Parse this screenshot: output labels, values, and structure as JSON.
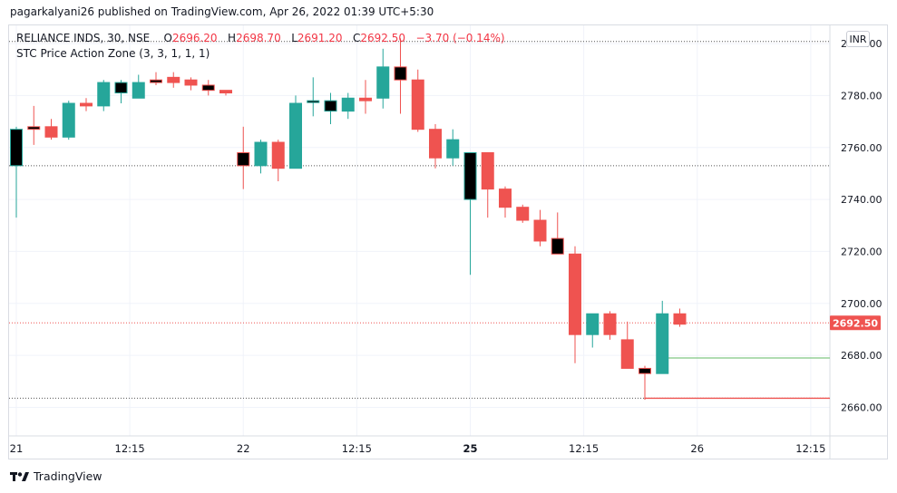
{
  "publisher_line": "pagarkalyani26 published on TradingView.com, Apr 26, 2022 01:39 UTC+5:30",
  "legend": {
    "symbol": "RELIANCE INDS, 30, NSE",
    "o_label": "O",
    "o_value": "2696.20",
    "h_label": "H",
    "h_value": "2698.70",
    "l_label": "L",
    "l_value": "2691.20",
    "c_label": "C",
    "c_value": "2692.50",
    "change": "−3.70 (−0.14%)",
    "indicator": "STC Price Action Zone (3, 3, 1, 1, 1)"
  },
  "currency_button": "INR",
  "brand": "TradingView",
  "colors": {
    "up": "#26a69a",
    "down": "#ef5350",
    "grid": "#f0f3fa",
    "price_tag": "#ef5350",
    "support": "#81c784",
    "resistance": "#ef5350",
    "dotted": "#555555"
  },
  "chart_data": {
    "type": "candlestick",
    "ylim": [
      2649,
      2807
    ],
    "y_ticks": [
      2660,
      2680,
      2700,
      2720,
      2740,
      2760,
      2780,
      2800
    ],
    "y_tick_labels": [
      "2660.00",
      "2680.00",
      "2700.00",
      "2720.00",
      "2740.00",
      "2760.00",
      "2780.00",
      "2800.00"
    ],
    "x_tick_labels": [
      {
        "label": "21",
        "bold": false,
        "index": 0
      },
      {
        "label": "12:15",
        "bold": false,
        "index": 6.5
      },
      {
        "label": "22",
        "bold": false,
        "index": 13
      },
      {
        "label": "12:15",
        "bold": false,
        "index": 19.5
      },
      {
        "label": "25",
        "bold": true,
        "index": 26
      },
      {
        "label": "12:15",
        "bold": false,
        "index": 32.5
      },
      {
        "label": "26",
        "bold": false,
        "index": 39
      },
      {
        "label": "12:15",
        "bold": false,
        "index": 45.5
      }
    ],
    "candles": [
      {
        "o": 2753,
        "h": 2768,
        "l": 2733,
        "c": 2767,
        "s": "zone"
      },
      {
        "o": 2768,
        "h": 2776,
        "l": 2761,
        "c": 2767,
        "s": "zone"
      },
      {
        "o": 2768,
        "h": 2771,
        "l": 2763,
        "c": 2764,
        "s": "down"
      },
      {
        "o": 2764,
        "h": 2778,
        "l": 2763,
        "c": 2777,
        "s": "up"
      },
      {
        "o": 2777,
        "h": 2779,
        "l": 2774,
        "c": 2776,
        "s": "down"
      },
      {
        "o": 2776,
        "h": 2786,
        "l": 2774,
        "c": 2785,
        "s": "up"
      },
      {
        "o": 2781,
        "h": 2786,
        "l": 2777,
        "c": 2785,
        "s": "zone"
      },
      {
        "o": 2779,
        "h": 2788,
        "l": 2779,
        "c": 2785,
        "s": "up"
      },
      {
        "o": 2786,
        "h": 2789,
        "l": 2784,
        "c": 2785,
        "s": "zone"
      },
      {
        "o": 2787,
        "h": 2789,
        "l": 2783,
        "c": 2785,
        "s": "down"
      },
      {
        "o": 2786,
        "h": 2787,
        "l": 2782,
        "c": 2784,
        "s": "down"
      },
      {
        "o": 2784,
        "h": 2786,
        "l": 2780,
        "c": 2782,
        "s": "zone"
      },
      {
        "o": 2782,
        "h": 2782,
        "l": 2780,
        "c": 2781,
        "s": "down"
      },
      {
        "o": 2758,
        "h": 2768,
        "l": 2744,
        "c": 2753,
        "s": "zone"
      },
      {
        "o": 2753,
        "h": 2763,
        "l": 2750,
        "c": 2762,
        "s": "up"
      },
      {
        "o": 2762,
        "h": 2763,
        "l": 2747,
        "c": 2752,
        "s": "down"
      },
      {
        "o": 2752,
        "h": 2780,
        "l": 2752,
        "c": 2777,
        "s": "up"
      },
      {
        "o": 2778,
        "h": 2787,
        "l": 2772,
        "c": 2778,
        "s": "zone"
      },
      {
        "o": 2774,
        "h": 2781,
        "l": 2769,
        "c": 2778,
        "s": "zone"
      },
      {
        "o": 2774,
        "h": 2781,
        "l": 2771,
        "c": 2779,
        "s": "up"
      },
      {
        "o": 2779,
        "h": 2786,
        "l": 2773,
        "c": 2778,
        "s": "down"
      },
      {
        "o": 2779,
        "h": 2798,
        "l": 2775,
        "c": 2791,
        "s": "up"
      },
      {
        "o": 2791,
        "h": 2802,
        "l": 2773,
        "c": 2786,
        "s": "zone"
      },
      {
        "o": 2786,
        "h": 2790,
        "l": 2766,
        "c": 2767,
        "s": "down"
      },
      {
        "o": 2767,
        "h": 2769,
        "l": 2752,
        "c": 2756,
        "s": "down"
      },
      {
        "o": 2756,
        "h": 2767,
        "l": 2753,
        "c": 2763,
        "s": "up"
      },
      {
        "o": 2740,
        "h": 2758,
        "l": 2711,
        "c": 2758,
        "s": "zone"
      },
      {
        "o": 2758,
        "h": 2758,
        "l": 2733,
        "c": 2744,
        "s": "down"
      },
      {
        "o": 2744,
        "h": 2745,
        "l": 2733,
        "c": 2737,
        "s": "down"
      },
      {
        "o": 2737,
        "h": 2738,
        "l": 2731,
        "c": 2732,
        "s": "down"
      },
      {
        "o": 2732,
        "h": 2736,
        "l": 2722,
        "c": 2724,
        "s": "down"
      },
      {
        "o": 2725,
        "h": 2735,
        "l": 2720,
        "c": 2719,
        "s": "zone"
      },
      {
        "o": 2719,
        "h": 2722,
        "l": 2677,
        "c": 2688,
        "s": "down"
      },
      {
        "o": 2688,
        "h": 2696,
        "l": 2683,
        "c": 2696,
        "s": "up"
      },
      {
        "o": 2696,
        "h": 2697,
        "l": 2686,
        "c": 2688,
        "s": "down"
      },
      {
        "o": 2686,
        "h": 2693,
        "l": 2675,
        "c": 2675,
        "s": "down"
      },
      {
        "o": 2675,
        "h": 2676,
        "l": 2663,
        "c": 2673,
        "s": "zone"
      },
      {
        "o": 2673,
        "h": 2701,
        "l": 2673,
        "c": 2696,
        "s": "up"
      },
      {
        "o": 2696,
        "h": 2698,
        "l": 2691,
        "c": 2692,
        "s": "down"
      }
    ],
    "lines": [
      {
        "name": "",
        "value": 2753,
        "style": "dotted"
      },
      {
        "name": "",
        "value": 2800.8,
        "style": "dotted"
      },
      {
        "name": "",
        "value": 2663.5,
        "style": "dotted"
      }
    ],
    "last_price": 2692.5,
    "last_price_label": "2692.50",
    "support_line": 2679,
    "resistance_line": 2663.5
  }
}
